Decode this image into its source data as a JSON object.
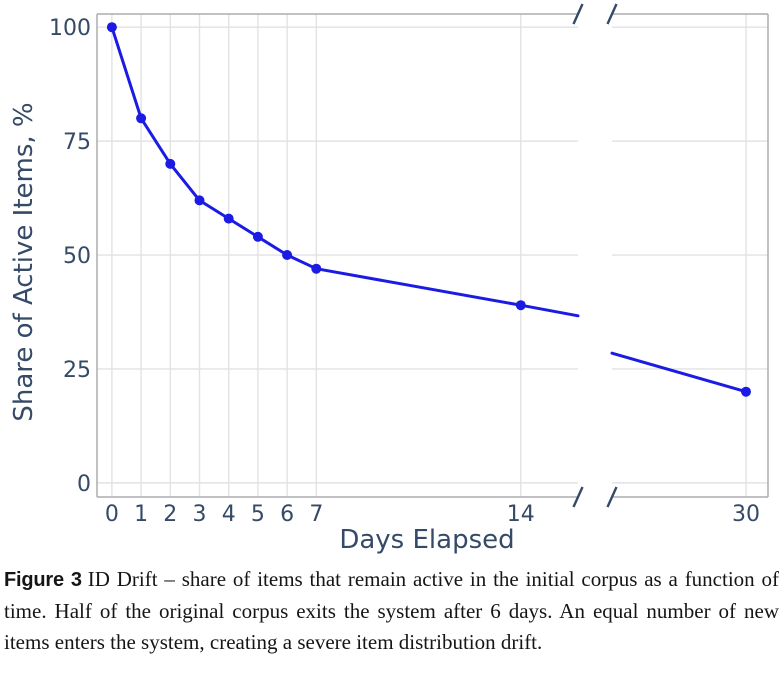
{
  "figure": {
    "caption_label": "Figure 3",
    "caption_text": "ID Drift – share of items that remain active in the initial corpus as a function of time. Half of the original corpus exits the system after 6 days. An equal number of new items enters the system, creating a severe item distribution drift."
  },
  "chart_data": {
    "type": "line",
    "title": "",
    "xlabel": "Days Elapsed",
    "ylabel": "Share of Active Items, %",
    "series": [
      {
        "name": "share-of-active-items",
        "x": [
          0,
          1,
          2,
          3,
          4,
          5,
          6,
          7,
          14,
          30
        ],
        "y": [
          100,
          80,
          70,
          62,
          58,
          54,
          50,
          47,
          39,
          20
        ]
      }
    ],
    "yticks": [
      0,
      25,
      50,
      75,
      100
    ],
    "ytick_labels": [
      "0",
      "25",
      "50",
      "75",
      "100"
    ],
    "xticks_left_panel": [
      0,
      1,
      2,
      3,
      4,
      5,
      6,
      7,
      14
    ],
    "xtick_labels_left_panel": [
      "0",
      "1",
      "2",
      "3",
      "4",
      "5",
      "6",
      "7",
      "14"
    ],
    "xticks_right_panel": [
      30
    ],
    "xtick_labels_right_panel": [
      "30"
    ],
    "ylim": [
      -3.1,
      102.9
    ],
    "left_panel_xlim": [
      -0.51,
      15.96
    ],
    "right_panel_xlim": [
      22.88,
      31.17
    ],
    "broken_x_axis": true,
    "grid": true,
    "legend": false,
    "line_color": "#1b1be4",
    "marker_color": "#1b1be4",
    "axis_text_color": "#344a66",
    "grid_color": "#e2e2e4",
    "spine_color": "#ababb2",
    "marker_radius": 5,
    "line_width": 3
  }
}
